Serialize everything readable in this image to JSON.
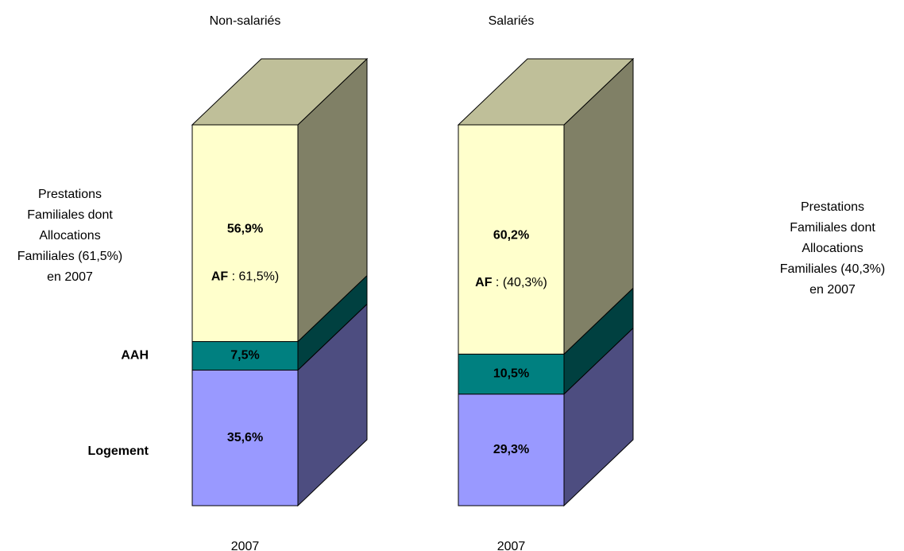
{
  "chart_data": [
    {
      "type": "bar3d_stacked",
      "title": "Non-salariés",
      "categories": [
        "2007"
      ],
      "ylim": [
        0,
        100
      ],
      "series": [
        {
          "name": "Logement",
          "color": "#9999ff",
          "values": [
            35.6
          ],
          "value_labels": [
            "35,6%"
          ]
        },
        {
          "name": "AAH",
          "color": "#008080",
          "values": [
            7.5
          ],
          "value_labels": [
            "7,5%"
          ]
        },
        {
          "name": "Prestations\nFamiliales dont\nAllocations\nFamiliales  (61,5%)\nen 2007",
          "color": "#ffffcc",
          "values": [
            56.9
          ],
          "value_labels": [
            "56,9%"
          ]
        }
      ],
      "annotation": {
        "bold": "AF",
        "text": " : 61,5%)"
      }
    },
    {
      "type": "bar3d_stacked",
      "title": "Salariés",
      "categories": [
        "2007"
      ],
      "ylim": [
        0,
        100
      ],
      "series": [
        {
          "color": "#9999ff",
          "values": [
            29.3
          ],
          "value_labels": [
            "29,3%"
          ]
        },
        {
          "color": "#008080",
          "values": [
            10.5
          ],
          "value_labels": [
            "10,5%"
          ]
        },
        {
          "color": "#ffffcc",
          "values": [
            60.2
          ],
          "value_labels": [
            "60,2%"
          ]
        }
      ],
      "annotation": {
        "bold": "AF",
        "text": " : (40,3%)"
      },
      "side_label": "Prestations\nFamiliales dont\nAllocations\nFamiliales  (40,3%)\nen 2007"
    }
  ]
}
